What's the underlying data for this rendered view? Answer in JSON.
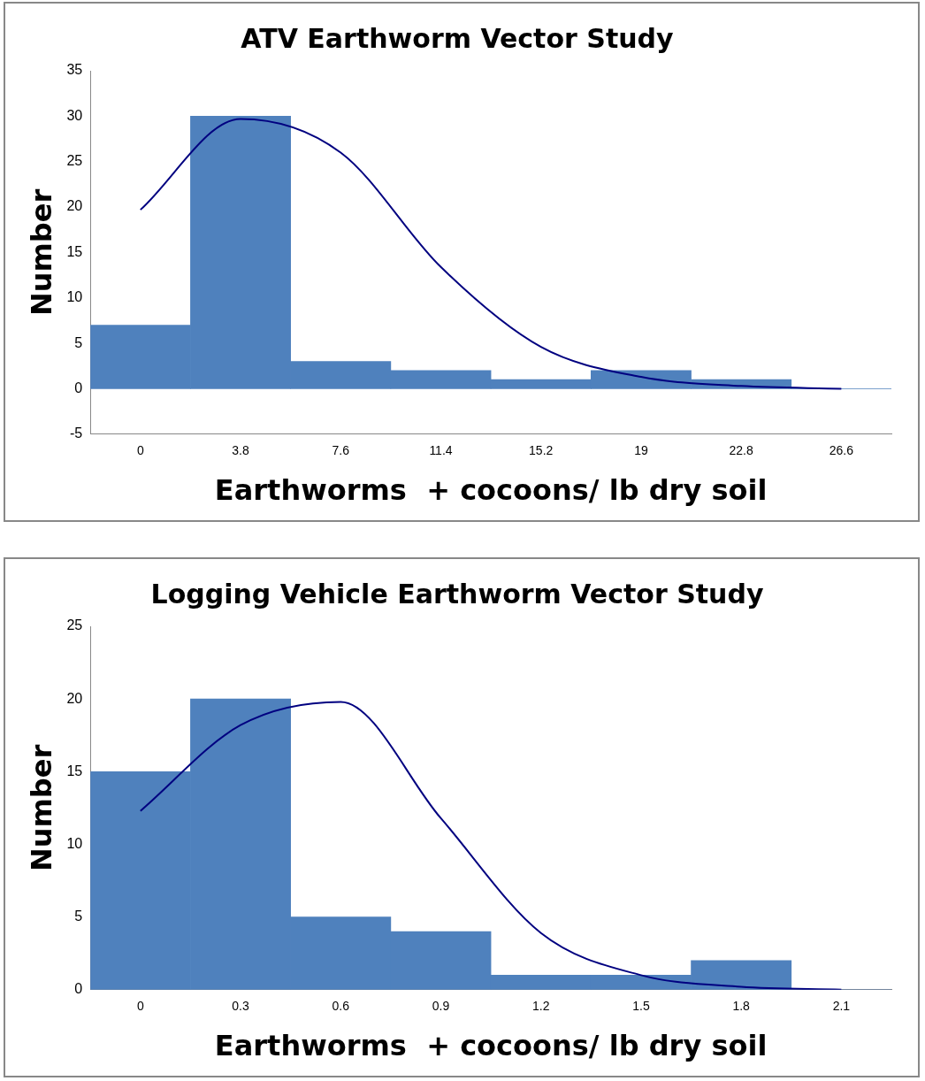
{
  "chart_data": [
    {
      "type": "bar",
      "title": "ATV Earthworm Vector Study",
      "xlabel": "Earthworms  + cocoons/ lb dry soil",
      "ylabel": "Number",
      "categories": [
        "0",
        "3.8",
        "7.6",
        "11.4",
        "15.2",
        "19",
        "22.8",
        "26.6"
      ],
      "series": [
        {
          "color": "#4f81bd",
          "values": [
            7,
            30,
            3,
            2,
            1,
            2,
            1,
            0
          ]
        },
        {
          "type": "line",
          "color": "#000080",
          "values": [
            19.7,
            29.7,
            26.0,
            13.4,
            4.6,
            1.3,
            0.3,
            0
          ]
        }
      ],
      "ylim": [
        -5,
        35
      ],
      "yticks": [
        -5,
        0,
        5,
        10,
        15,
        20,
        25,
        30,
        35
      ],
      "grid": false,
      "legend": false,
      "marker": "none"
    },
    {
      "type": "bar",
      "title": "Logging Vehicle Earthworm Vector Study",
      "xlabel": "Earthworms  + cocoons/ lb dry soil",
      "ylabel": "Number",
      "categories": [
        "0",
        "0.3",
        "0.6",
        "0.9",
        "1.2",
        "1.5",
        "1.8",
        "2.1"
      ],
      "series": [
        {
          "color": "#4f81bd",
          "values": [
            15,
            20,
            5,
            4,
            1,
            1,
            2,
            0
          ]
        },
        {
          "type": "line",
          "color": "#000080",
          "values": [
            12.3,
            18.2,
            19.8,
            11.8,
            3.9,
            1.0,
            0.2,
            0
          ]
        }
      ],
      "ylim": [
        0,
        25
      ],
      "yticks": [
        0,
        5,
        10,
        15,
        20,
        25
      ],
      "grid": false,
      "legend": false,
      "marker": "none"
    }
  ]
}
